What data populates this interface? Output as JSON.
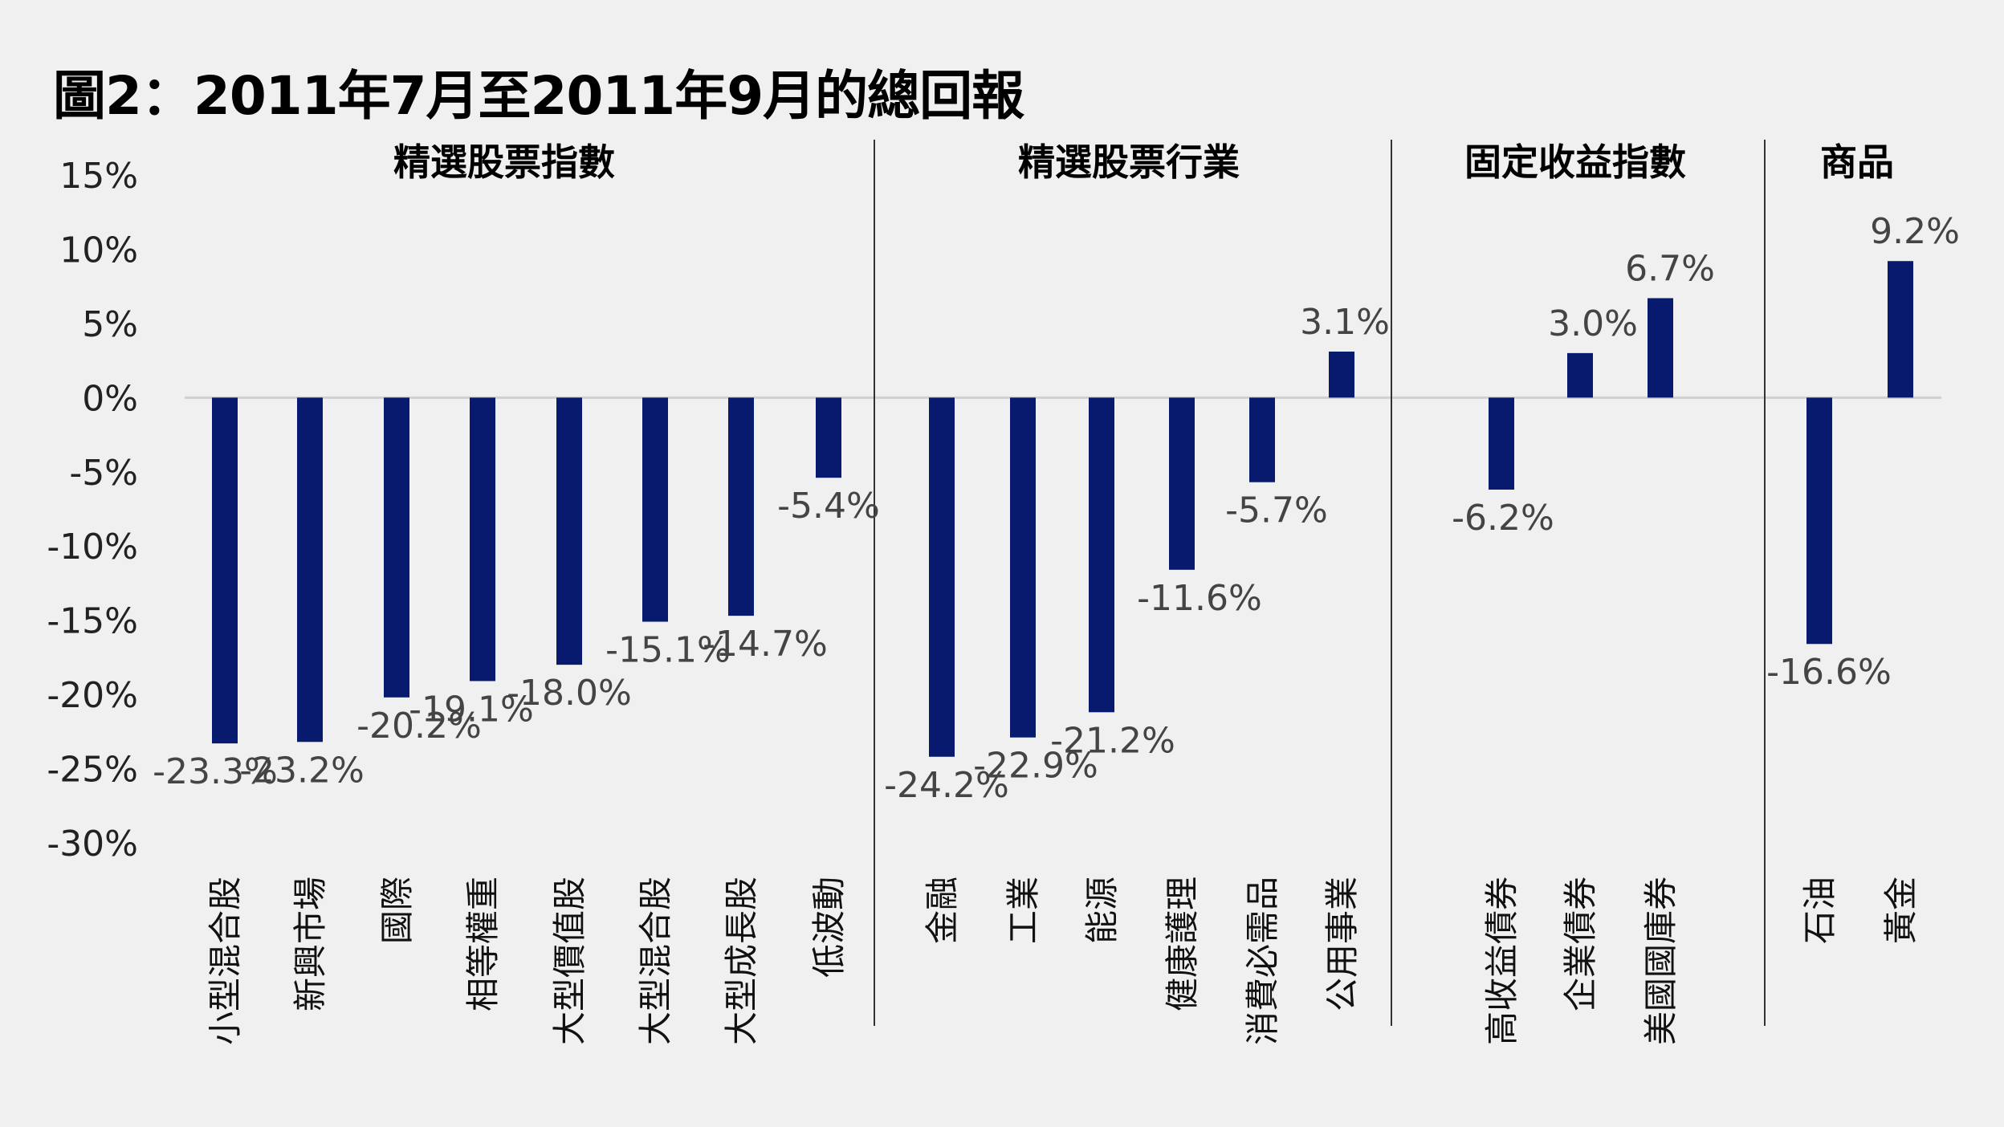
{
  "colors": {
    "bar": "#071a6e",
    "background": "#f0f0f0",
    "zero_line": "#d0d0d0",
    "divider": "#333333"
  },
  "chart_data": {
    "type": "bar",
    "title": "圖2：2011年7月至2011年9月的總回報",
    "xlabel": "",
    "ylabel": "",
    "ylim": [
      -30,
      15
    ],
    "yticks": [
      15,
      10,
      5,
      0,
      -5,
      -10,
      -15,
      -20,
      -25,
      -30
    ],
    "ytick_labels": [
      "15%",
      "10%",
      "5%",
      "0%",
      "-5%",
      "-10%",
      "-15%",
      "-20%",
      "-25%",
      "-30%"
    ],
    "groups": [
      {
        "name": "精選股票指數",
        "categories": [
          "小型混合股",
          "新興市場",
          "國際",
          "相等權重",
          "大型價值股",
          "大型混合股",
          "大型成長股",
          "低波動"
        ],
        "values": [
          -23.3,
          -23.2,
          -20.2,
          -19.1,
          -18.0,
          -15.1,
          -14.7,
          -5.4
        ],
        "labels": [
          "-23.3%",
          "-23.2%",
          "-20.2%",
          "-19.1%",
          "-18.0%",
          "-15.1%",
          "-14.7%",
          "-5.4%"
        ]
      },
      {
        "name": "精選股票行業",
        "categories": [
          "金融",
          "工業",
          "能源",
          "健康護理",
          "消費必需品",
          "公用事業"
        ],
        "values": [
          -24.2,
          -22.9,
          -21.2,
          -11.6,
          -5.7,
          3.1
        ],
        "labels": [
          "-24.2%",
          "-22.9%",
          "-21.2%",
          "-11.6%",
          "-5.7%",
          "3.1%"
        ]
      },
      {
        "name": "固定收益指數",
        "categories": [
          "高收益債券",
          "企業債券",
          "美國國庫券"
        ],
        "values": [
          -6.2,
          3.0,
          6.7
        ],
        "labels": [
          "-6.2%",
          "3.0%",
          "6.7%"
        ]
      },
      {
        "name": "商品",
        "categories": [
          "石油",
          "黃金"
        ],
        "values": [
          -16.6,
          9.2
        ],
        "labels": [
          "-16.6%",
          "9.2%"
        ]
      }
    ]
  }
}
